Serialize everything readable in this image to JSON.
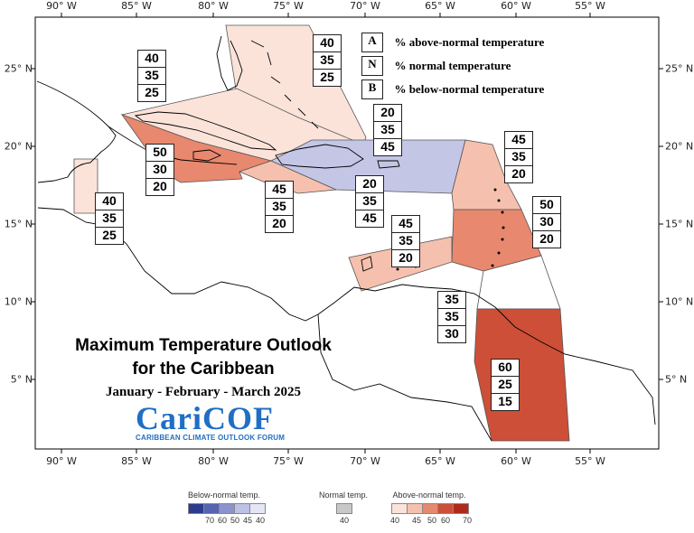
{
  "title_line1": "Maximum Temperature Outlook",
  "title_line2": "for the Caribbean",
  "subtitle": "January - February - March 2025",
  "logo": {
    "text": "CariCOF",
    "tagline": "CARIBBEAN CLIMATE OUTLOOK FORUM",
    "color": "#1f6fc4"
  },
  "key": [
    {
      "letter": "A",
      "text": "% above-normal temperature"
    },
    {
      "letter": "N",
      "text": "% normal temperature"
    },
    {
      "letter": "B",
      "text": "% below-normal temperature"
    }
  ],
  "axes": {
    "longitude_ticks": [
      "90° W",
      "85° W",
      "80° W",
      "75° W",
      "70° W",
      "65° W",
      "60° W",
      "55° W"
    ],
    "latitude_ticks": [
      "25° N",
      "20° N",
      "15° N",
      "10° N",
      "5° N"
    ]
  },
  "regions": [
    {
      "id": "bahamas",
      "name": "",
      "A": 40,
      "N": 35,
      "B": 25,
      "category": "above-40",
      "color": "#fbe3da"
    },
    {
      "id": "cuba",
      "name": "",
      "A": 40,
      "N": 35,
      "B": 25,
      "category": "above-40",
      "color": "#fbe3da"
    },
    {
      "id": "cayman-jamaica",
      "name": "",
      "A": 50,
      "N": 30,
      "B": 20,
      "category": "above-50",
      "color": "#e8886e"
    },
    {
      "id": "belize",
      "name": "",
      "A": 40,
      "N": 35,
      "B": 25,
      "category": "above-40",
      "color": "#fbe3da"
    },
    {
      "id": "haiti-west",
      "name": "",
      "A": 45,
      "N": 35,
      "B": 20,
      "category": "above-45",
      "color": "#f6c0ae"
    },
    {
      "id": "hispaniola-pr",
      "name": "",
      "A": 20,
      "N": 35,
      "B": 45,
      "category": "below-45",
      "color": "#c4c6e6"
    },
    {
      "id": "leeward-islands",
      "name": "",
      "A": 45,
      "N": 35,
      "B": 20,
      "category": "above-45",
      "color": "#f6c0ae"
    },
    {
      "id": "windward-islands",
      "name": "",
      "A": 50,
      "N": 30,
      "B": 20,
      "category": "above-50",
      "color": "#e8886e"
    },
    {
      "id": "abc-islands",
      "name": "",
      "A": 45,
      "N": 35,
      "B": 20,
      "category": "above-45",
      "color": "#f6c0ae"
    },
    {
      "id": "trinidad",
      "name": "",
      "A": 35,
      "N": 35,
      "B": 30,
      "category": "normal",
      "color": "#ffffff"
    },
    {
      "id": "guianas",
      "name": "",
      "A": 60,
      "N": 25,
      "B": 15,
      "category": "above-60",
      "color": "#cd4f37"
    }
  ],
  "legend": [
    {
      "title": "Below-normal temp.",
      "colors": [
        "#2c3b8f",
        "#5563b0",
        "#8b92cd",
        "#bdc1e5",
        "#e4e6f5"
      ],
      "labels": [
        "70",
        "60",
        "50",
        "45",
        "40"
      ]
    },
    {
      "title": "Normal temp.",
      "colors": [
        "#c8c8c8"
      ],
      "labels": [
        "40"
      ]
    },
    {
      "title": "Above-normal temp.",
      "colors": [
        "#fbe3da",
        "#f6c0ae",
        "#e8886e",
        "#cd4f37",
        "#b02a1a"
      ],
      "labels": [
        "40",
        "45",
        "50",
        "60",
        "70"
      ]
    }
  ]
}
